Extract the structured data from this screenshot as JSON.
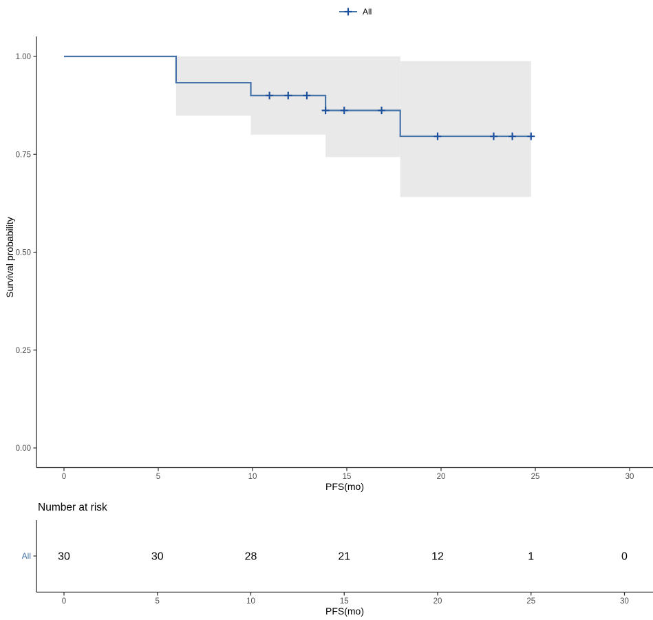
{
  "legend": {
    "label": "All"
  },
  "colors": {
    "curve": "#4673A8",
    "censor": "#1C509C",
    "ci_fill": "#E9E9E9",
    "axis_line": "#2B2B2B",
    "tick_label": "#4D4D4D",
    "title_text": "#000000",
    "risk_row_label": "#4673A8"
  },
  "axes": {
    "x": {
      "title": "PFS(mo)",
      "ticks": [
        "0",
        "5",
        "10",
        "15",
        "20",
        "25",
        "30"
      ],
      "tick_values": [
        0,
        5,
        10,
        15,
        20,
        25,
        30
      ],
      "range": [
        0,
        30
      ]
    },
    "y": {
      "title": "Survival probability",
      "ticks": [
        "0.00",
        "0.25",
        "0.50",
        "0.75",
        "1.00"
      ],
      "tick_values": [
        0,
        0.25,
        0.5,
        0.75,
        1
      ],
      "range": [
        0,
        1
      ]
    }
  },
  "chart_data": {
    "type": "line",
    "subtype": "kaplan-meier-step",
    "title": "",
    "xlabel": "PFS(mo)",
    "ylabel": "Survival probability",
    "xlim": [
      0,
      30
    ],
    "ylim": [
      0,
      1
    ],
    "grid": false,
    "legend_position": "top-center",
    "series": [
      {
        "name": "All",
        "steps": [
          {
            "t0": 0,
            "t1": 6,
            "s": 1.0
          },
          {
            "t0": 6,
            "t1": 10,
            "s": 0.933
          },
          {
            "t0": 10,
            "t1": 14,
            "s": 0.9
          },
          {
            "t0": 14,
            "t1": 18,
            "s": 0.862
          },
          {
            "t0": 18,
            "t1": 25,
            "s": 0.796
          }
        ],
        "censor_marks": [
          {
            "t": 11,
            "s": 0.9
          },
          {
            "t": 12,
            "s": 0.9
          },
          {
            "t": 13,
            "s": 0.9
          },
          {
            "t": 14,
            "s": 0.862
          },
          {
            "t": 15,
            "s": 0.862
          },
          {
            "t": 17,
            "s": 0.862
          },
          {
            "t": 20,
            "s": 0.796
          },
          {
            "t": 23,
            "s": 0.796
          },
          {
            "t": 24,
            "s": 0.796
          },
          {
            "t": 25,
            "s": 0.796
          }
        ],
        "ci_segments": [
          {
            "t0": 6,
            "t1": 10,
            "lower": 0.849,
            "upper": 1.0
          },
          {
            "t0": 10,
            "t1": 14,
            "lower": 0.8,
            "upper": 1.0
          },
          {
            "t0": 14,
            "t1": 18,
            "lower": 0.743,
            "upper": 1.0
          },
          {
            "t0": 18,
            "t1": 25,
            "lower": 0.641,
            "upper": 0.988
          }
        ]
      }
    ]
  },
  "risk_table": {
    "title": "Number at risk",
    "xlabel": "PFS(mo)",
    "times": [
      0,
      5,
      10,
      15,
      20,
      25,
      30
    ],
    "time_labels": [
      "0",
      "5",
      "10",
      "15",
      "20",
      "25",
      "30"
    ],
    "rows": [
      {
        "label": "All",
        "values": [
          "30",
          "30",
          "28",
          "21",
          "12",
          "1",
          "0"
        ]
      }
    ]
  }
}
